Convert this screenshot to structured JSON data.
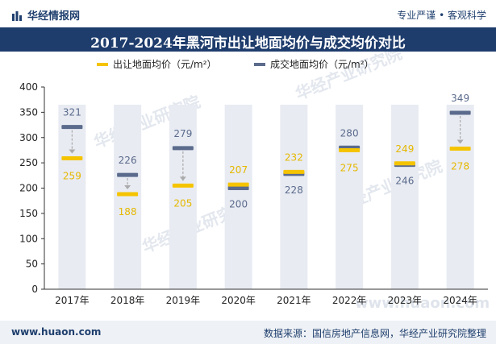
{
  "header": {
    "brand": "华经情报网",
    "tagline": "专业严谨 • 客观科学"
  },
  "title": "2017-2024年黑河市出让地面均价与成交均价对比",
  "footer": {
    "website": "www.huaon.com",
    "source": "数据来源：国信房地产信息网，华经产业研究院整理"
  },
  "watermark": "华经产业研究院",
  "watermark_url": "www.huaon.com",
  "chart_data": {
    "type": "bar",
    "title": "2017-2024年黑河市出让地面均价与成交均价对比",
    "categories": [
      "2017年",
      "2018年",
      "2019年",
      "2020年",
      "2021年",
      "2022年",
      "2023年",
      "2024年"
    ],
    "ylim": [
      0,
      400
    ],
    "yticks": [
      "0",
      "50",
      "100",
      "150",
      "200",
      "250",
      "300",
      "350",
      "400"
    ],
    "legend_position": "top",
    "series": [
      {
        "name": "出让地面均价（元/m²）",
        "color": "#f5c400",
        "values": [
          259,
          188,
          205,
          207,
          232,
          275,
          249,
          278
        ]
      },
      {
        "name": "成交地面均价（元/m²）",
        "color": "#5b6b8c",
        "values": [
          321,
          226,
          279,
          200,
          228,
          280,
          246,
          349
        ]
      }
    ],
    "value_labels": {
      "transfer": [
        "259",
        "188",
        "205",
        "207",
        "232",
        "275",
        "249",
        "278"
      ],
      "deal": [
        "321",
        "226",
        "279",
        "200",
        "228",
        "280",
        "246",
        "349"
      ]
    }
  }
}
